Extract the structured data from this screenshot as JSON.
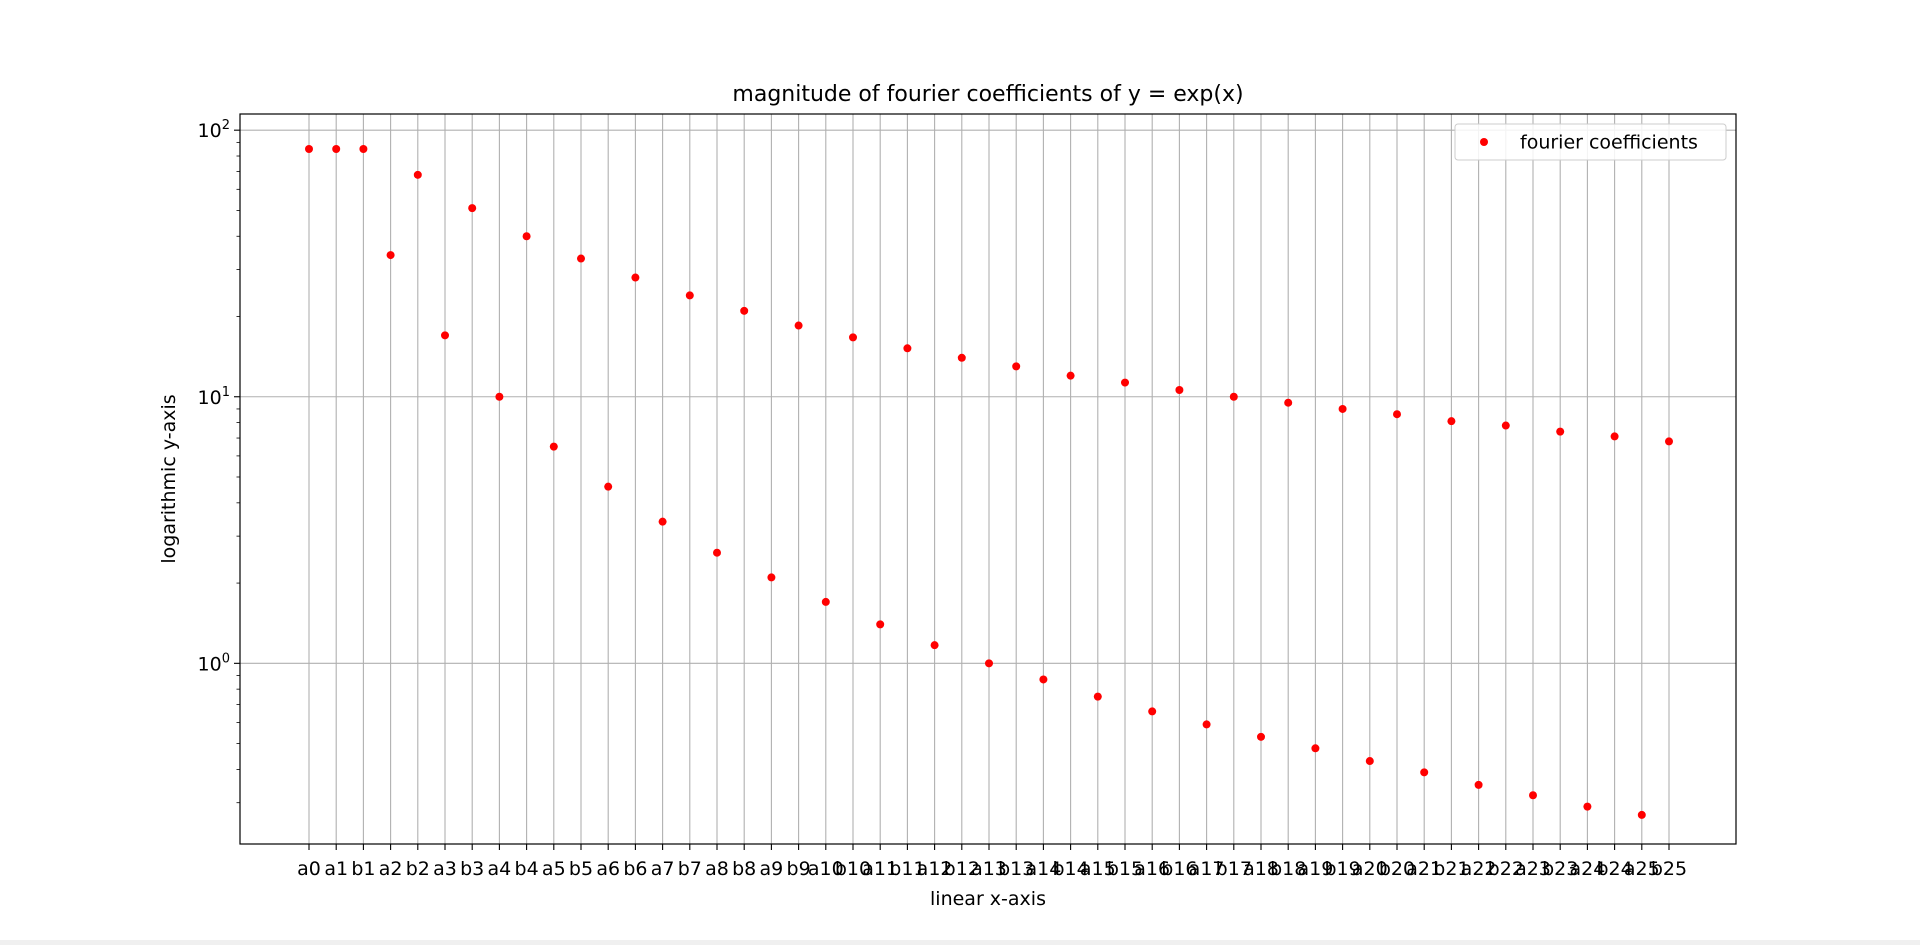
{
  "chart_data": {
    "type": "scatter",
    "title": "magnitude of fourier coefficients of y = exp(x)",
    "xlabel": "linear x-axis",
    "ylabel": "logarithmic y-axis",
    "yscale": "log",
    "ylim": [
      0.21,
      115
    ],
    "y_ticks": [
      {
        "value": 1,
        "label_base": "10",
        "label_exp": "0"
      },
      {
        "value": 10,
        "label_base": "10",
        "label_exp": "1"
      },
      {
        "value": 100,
        "label_base": "10",
        "label_exp": "2"
      }
    ],
    "grid": true,
    "legend_position": "top-right",
    "series": [
      {
        "name": "fourier coefficients",
        "color": "#ff0000",
        "marker": "dot",
        "categories": [
          "a0",
          "a1",
          "b1",
          "a2",
          "b2",
          "a3",
          "b3",
          "a4",
          "b4",
          "a5",
          "b5",
          "a6",
          "b6",
          "a7",
          "b7",
          "a8",
          "b8",
          "a9",
          "b9",
          "a10",
          "b10",
          "a11",
          "b11",
          "a12",
          "b12",
          "a13",
          "b13",
          "a14",
          "b14",
          "a15",
          "b15",
          "a16",
          "b16",
          "a17",
          "b17",
          "a18",
          "b18",
          "a19",
          "b19",
          "a20",
          "b20",
          "a21",
          "b21",
          "a22",
          "b22",
          "a23",
          "b23",
          "a24",
          "b24",
          "a25",
          "b25"
        ],
        "values": [
          85,
          85,
          85,
          34,
          68,
          17,
          51,
          10,
          40,
          6.5,
          33,
          4.6,
          28,
          3.4,
          24,
          2.6,
          21,
          2.1,
          18.5,
          1.7,
          16.7,
          1.4,
          15.2,
          1.17,
          14,
          1.0,
          13,
          0.87,
          12,
          0.75,
          11.3,
          0.66,
          10.6,
          0.59,
          10,
          0.53,
          9.5,
          0.48,
          9,
          0.43,
          8.6,
          0.39,
          8.1,
          0.35,
          7.8,
          0.32,
          7.4,
          0.29,
          7.1,
          0.27,
          6.8
        ]
      }
    ]
  }
}
